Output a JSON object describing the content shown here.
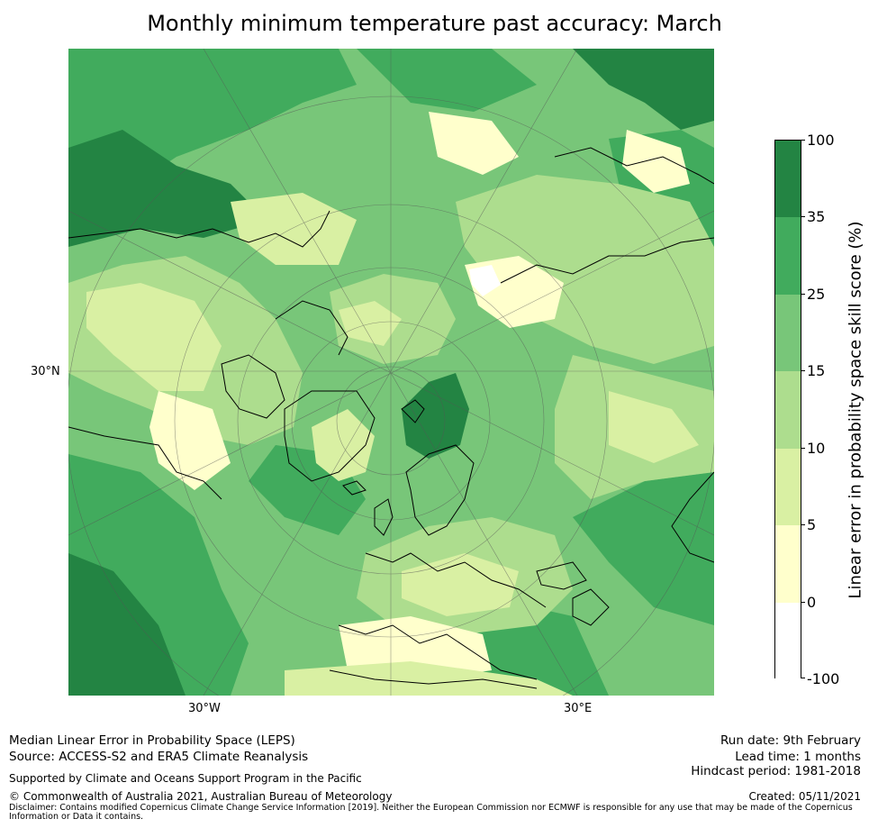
{
  "title": "Monthly minimum temperature past accuracy: March",
  "map": {
    "projection": "north-polar-stereographic",
    "lat_labels": [
      "30°N"
    ],
    "lon_labels": [
      "30°W",
      "30°E"
    ],
    "palette": {
      "r0": "#ffffff",
      "r1": "#ffffcc",
      "r2": "#d9f0a3",
      "r3": "#addd8e",
      "r4": "#78c679",
      "r5": "#41ab5d",
      "r6": "#238443",
      "coast": "#000000",
      "grid": "#555555"
    }
  },
  "colorbar": {
    "label": "Linear error in probability space skill score (%)",
    "ticks": [
      "100",
      "35",
      "25",
      "15",
      "10",
      "5",
      "0",
      "-100"
    ],
    "colors": [
      "#238443",
      "#41ab5d",
      "#78c679",
      "#addd8e",
      "#d9f0a3",
      "#ffffcc",
      "#ffffff"
    ]
  },
  "footer": {
    "line1": "Median Linear Error in Probability Space (LEPS)",
    "line2": "Source: ACCESS-S2 and ERA5 Climate Reanalysis",
    "support": "Supported by Climate and Oceans Support Program in the Pacific",
    "copyright": "© Commonwealth of Australia 2021, Australian Bureau of Meteorology",
    "disclaimer": "Disclaimer: Contains modified Copernicus Climate Change Service Information [2019]. Neither the European Commission nor ECMWF is responsible for any use that may be made of the Copernicus Information or Data it contains.",
    "run_date": "Run date: 9th February",
    "lead_time": "Lead time: 1 months",
    "hindcast": "Hindcast period: 1981-2018",
    "created": "Created: 05/11/2021"
  }
}
